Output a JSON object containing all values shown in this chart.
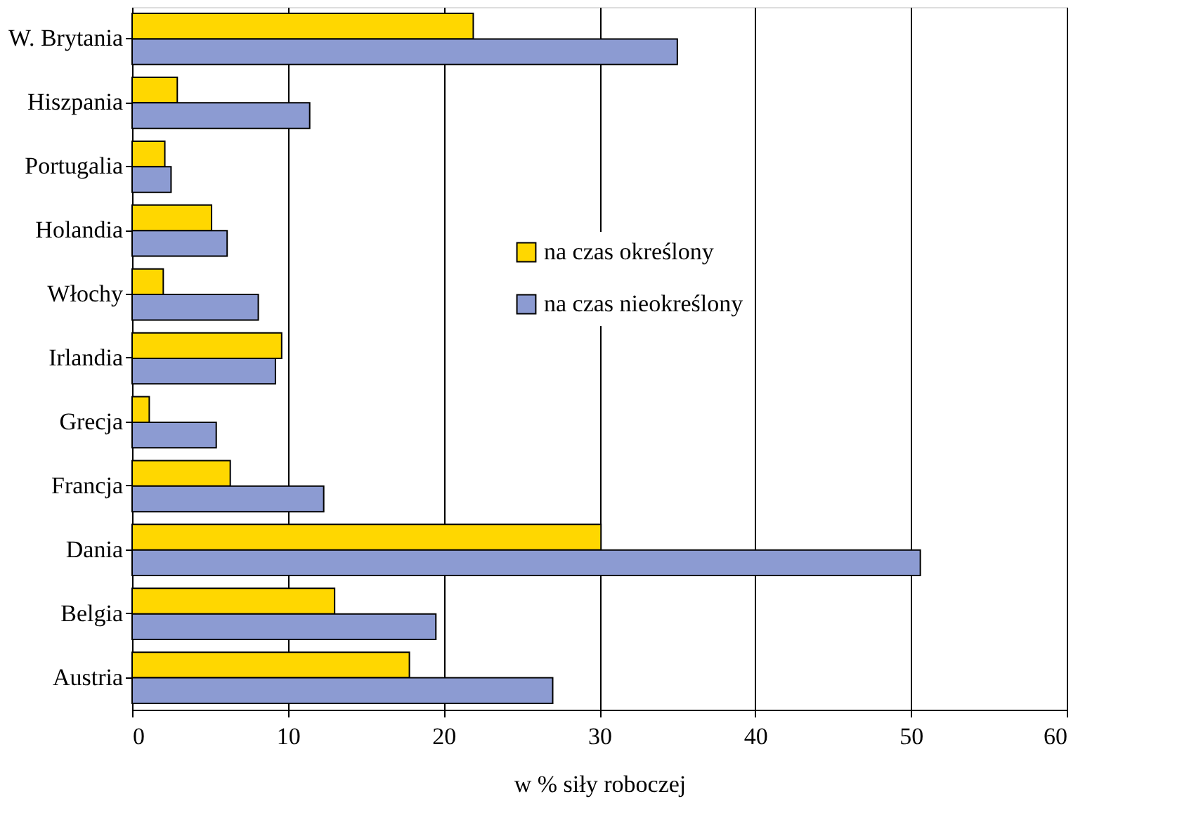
{
  "chart_data": {
    "type": "bar",
    "orientation": "horizontal",
    "xlabel": "w % siły roboczej",
    "categories": [
      "W. Brytania",
      "Hiszpania",
      "Portugalia",
      "Holandia",
      "Włochy",
      "Irlandia",
      "Grecja",
      "Francja",
      "Dania",
      "Belgia",
      "Austria"
    ],
    "series": [
      {
        "name": "na czas określony",
        "color": "#ffd700",
        "values": [
          21.9,
          2.9,
          2.1,
          5.1,
          2.0,
          9.6,
          1.1,
          6.3,
          30.1,
          13.0,
          17.8
        ]
      },
      {
        "name": "na czas nieokreślony",
        "color": "#8c9bd2",
        "values": [
          35.0,
          11.4,
          2.5,
          6.1,
          8.1,
          9.2,
          5.4,
          12.3,
          50.6,
          19.5,
          27.0
        ]
      }
    ],
    "xlim": [
      0,
      60
    ],
    "xticks": [
      0,
      10,
      20,
      30,
      40,
      50,
      60
    ],
    "grid": "x",
    "legend": "right"
  }
}
